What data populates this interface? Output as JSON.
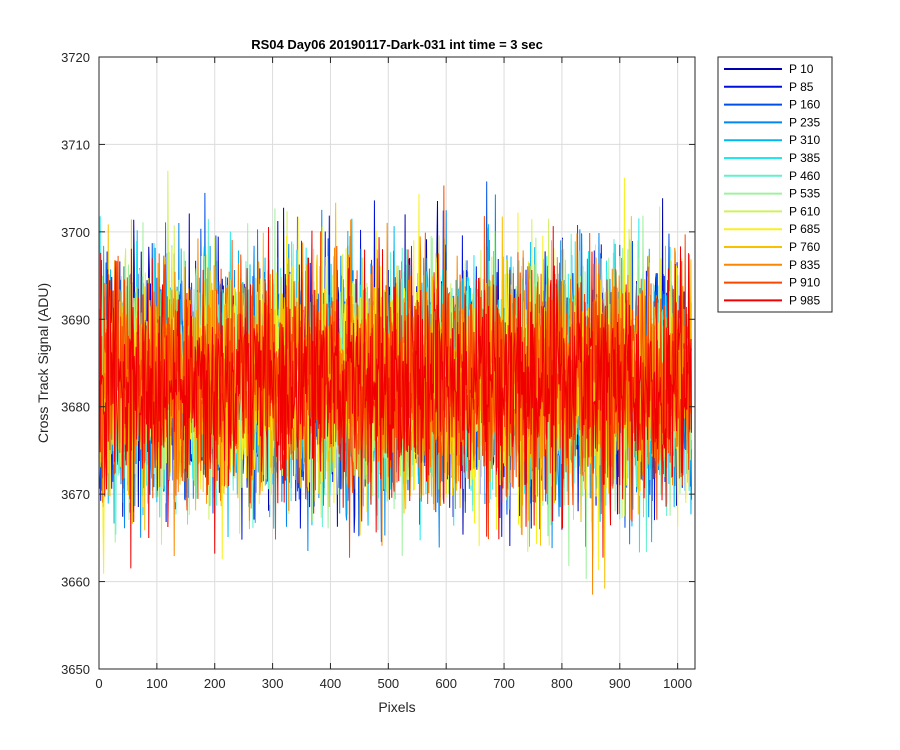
{
  "chart_data": {
    "type": "line",
    "title": "RS04 Day06 20190117-Dark-031 int time = 3 sec",
    "xlabel": "Pixels",
    "ylabel": "Cross Track Signal (ADU)",
    "xlim": [
      0,
      1030
    ],
    "ylim": [
      3650,
      3720
    ],
    "xticks": [
      0,
      100,
      200,
      300,
      400,
      500,
      600,
      700,
      800,
      900,
      1000
    ],
    "yticks": [
      3650,
      3660,
      3670,
      3680,
      3690,
      3700,
      3710,
      3720
    ],
    "grid": true,
    "legend_position": "outside-top-right",
    "series": [
      {
        "name": "P 10",
        "color": "#0000b0",
        "mean": 3683,
        "std": 6.5
      },
      {
        "name": "P 85",
        "color": "#0010d8",
        "mean": 3683,
        "std": 6.5
      },
      {
        "name": "P 160",
        "color": "#0050e8",
        "mean": 3683,
        "std": 6.5
      },
      {
        "name": "P 235",
        "color": "#0088f0",
        "mean": 3683,
        "std": 6.5
      },
      {
        "name": "P 310",
        "color": "#00b8f0",
        "mean": 3683,
        "std": 6.5
      },
      {
        "name": "P 385",
        "color": "#20e8f0",
        "mean": 3683,
        "std": 6.5
      },
      {
        "name": "P 460",
        "color": "#60f0d0",
        "mean": 3683,
        "std": 6.5
      },
      {
        "name": "P 535",
        "color": "#a0f0a0",
        "mean": 3683,
        "std": 6.5
      },
      {
        "name": "P 610",
        "color": "#d0f060",
        "mean": 3683,
        "std": 6.5
      },
      {
        "name": "P 685",
        "color": "#f8f020",
        "mean": 3683,
        "std": 6.5
      },
      {
        "name": "P 760",
        "color": "#f8c000",
        "mean": 3683,
        "std": 6.5
      },
      {
        "name": "P 835",
        "color": "#f88800",
        "mean": 3683,
        "std": 6.5
      },
      {
        "name": "P 910",
        "color": "#f84800",
        "mean": 3683,
        "std": 6.5
      },
      {
        "name": "P 985",
        "color": "#f00000",
        "mean": 3683,
        "std": 6.5
      }
    ],
    "x_range": [
      1,
      1024
    ]
  }
}
